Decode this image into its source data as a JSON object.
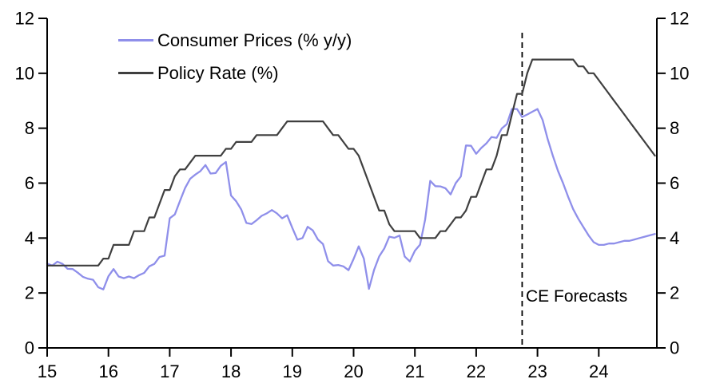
{
  "chart_data": {
    "type": "line",
    "title": "",
    "legend_position": "top-left-inside",
    "grid": false,
    "x_axis": {
      "range": [
        15,
        25
      ],
      "ticks": [
        15,
        16,
        17,
        18,
        19,
        20,
        21,
        22,
        23,
        24
      ],
      "tick_labels": [
        "15",
        "16",
        "17",
        "18",
        "19",
        "20",
        "21",
        "22",
        "23",
        "24"
      ]
    },
    "y_axis_left": {
      "range": [
        0,
        12
      ],
      "ticks": [
        0,
        2,
        4,
        6,
        8,
        10,
        12
      ],
      "tick_labels": [
        "0",
        "2",
        "4",
        "6",
        "8",
        "10",
        "12"
      ]
    },
    "y_axis_right": {
      "range": [
        0,
        12
      ],
      "ticks": [
        0,
        2,
        4,
        6,
        8,
        10,
        12
      ],
      "tick_labels": [
        "0",
        "2",
        "4",
        "6",
        "8",
        "10",
        "12"
      ]
    },
    "annotation": {
      "label": "CE Forecasts",
      "x_year": 22.75,
      "line_style": "dashed-vertical"
    },
    "colors": {
      "consumer_prices": "#8f8fea",
      "policy_rate": "#3f3f3f",
      "axis": "#000000",
      "forecast_divider": "#000000"
    },
    "legend": [
      {
        "label": "Consumer Prices (% y/y)",
        "color": "#8f8fea"
      },
      {
        "label": "Policy Rate (%)",
        "color": "#3f3f3f"
      }
    ],
    "series": [
      {
        "name": "Consumer Prices (% y/y)",
        "color": "#8f8fea",
        "start_year": 2015,
        "frequency": "monthly",
        "values": [
          3.07,
          3.0,
          3.14,
          3.06,
          2.88,
          2.87,
          2.74,
          2.59,
          2.52,
          2.48,
          2.21,
          2.13,
          2.61,
          2.87,
          2.6,
          2.54,
          2.6,
          2.54,
          2.65,
          2.73,
          2.97,
          3.06,
          3.31,
          3.36,
          4.72,
          4.86,
          5.35,
          5.82,
          6.16,
          6.31,
          6.44,
          6.66,
          6.35,
          6.37,
          6.63,
          6.77,
          5.55,
          5.34,
          5.04,
          4.55,
          4.51,
          4.65,
          4.81,
          4.9,
          5.02,
          4.9,
          4.72,
          4.83,
          4.37,
          3.94,
          4.0,
          4.41,
          4.28,
          3.95,
          3.78,
          3.16,
          3.0,
          3.02,
          2.97,
          2.83,
          3.24,
          3.7,
          3.25,
          2.15,
          2.84,
          3.33,
          3.62,
          4.05,
          4.01,
          4.09,
          3.33,
          3.15,
          3.54,
          3.76,
          4.67,
          6.08,
          5.89,
          5.88,
          5.81,
          5.59,
          6.0,
          6.24,
          7.37,
          7.36,
          7.07,
          7.28,
          7.45,
          7.68,
          7.65,
          7.99,
          8.15,
          8.7,
          8.7,
          8.41,
          8.5,
          8.6,
          8.7,
          8.3,
          7.6,
          7.0,
          6.45,
          6.0,
          5.5,
          5.05,
          4.7,
          4.4,
          4.1,
          3.85,
          3.75,
          3.75,
          3.8,
          3.8,
          3.85,
          3.9,
          3.9,
          3.95,
          4.0,
          4.05,
          4.1,
          4.15
        ]
      },
      {
        "name": "Policy Rate (%)",
        "color": "#3f3f3f",
        "start_year": 2015,
        "frequency": "monthly",
        "values": [
          3.0,
          3.0,
          3.0,
          3.0,
          3.0,
          3.0,
          3.0,
          3.0,
          3.0,
          3.0,
          3.0,
          3.25,
          3.25,
          3.75,
          3.75,
          3.75,
          3.75,
          4.25,
          4.25,
          4.25,
          4.75,
          4.75,
          5.25,
          5.75,
          5.75,
          6.25,
          6.5,
          6.5,
          6.75,
          7.0,
          7.0,
          7.0,
          7.0,
          7.0,
          7.0,
          7.25,
          7.25,
          7.5,
          7.5,
          7.5,
          7.5,
          7.75,
          7.75,
          7.75,
          7.75,
          7.75,
          8.0,
          8.25,
          8.25,
          8.25,
          8.25,
          8.25,
          8.25,
          8.25,
          8.25,
          8.0,
          7.75,
          7.75,
          7.5,
          7.25,
          7.25,
          7.0,
          6.5,
          6.0,
          5.5,
          5.0,
          5.0,
          4.5,
          4.25,
          4.25,
          4.25,
          4.25,
          4.25,
          4.0,
          4.0,
          4.0,
          4.0,
          4.25,
          4.25,
          4.5,
          4.75,
          4.75,
          5.0,
          5.5,
          5.5,
          6.0,
          6.5,
          6.5,
          7.0,
          7.75,
          7.75,
          8.5,
          9.25,
          9.25,
          10.0,
          10.5,
          10.5,
          10.5,
          10.5,
          10.5,
          10.5,
          10.5,
          10.5,
          10.5,
          10.25,
          10.25,
          10.0,
          10.0,
          9.75,
          9.5,
          9.25,
          9.0,
          8.75,
          8.5,
          8.25,
          8.0,
          7.75,
          7.5,
          7.25,
          7.0
        ]
      }
    ]
  }
}
